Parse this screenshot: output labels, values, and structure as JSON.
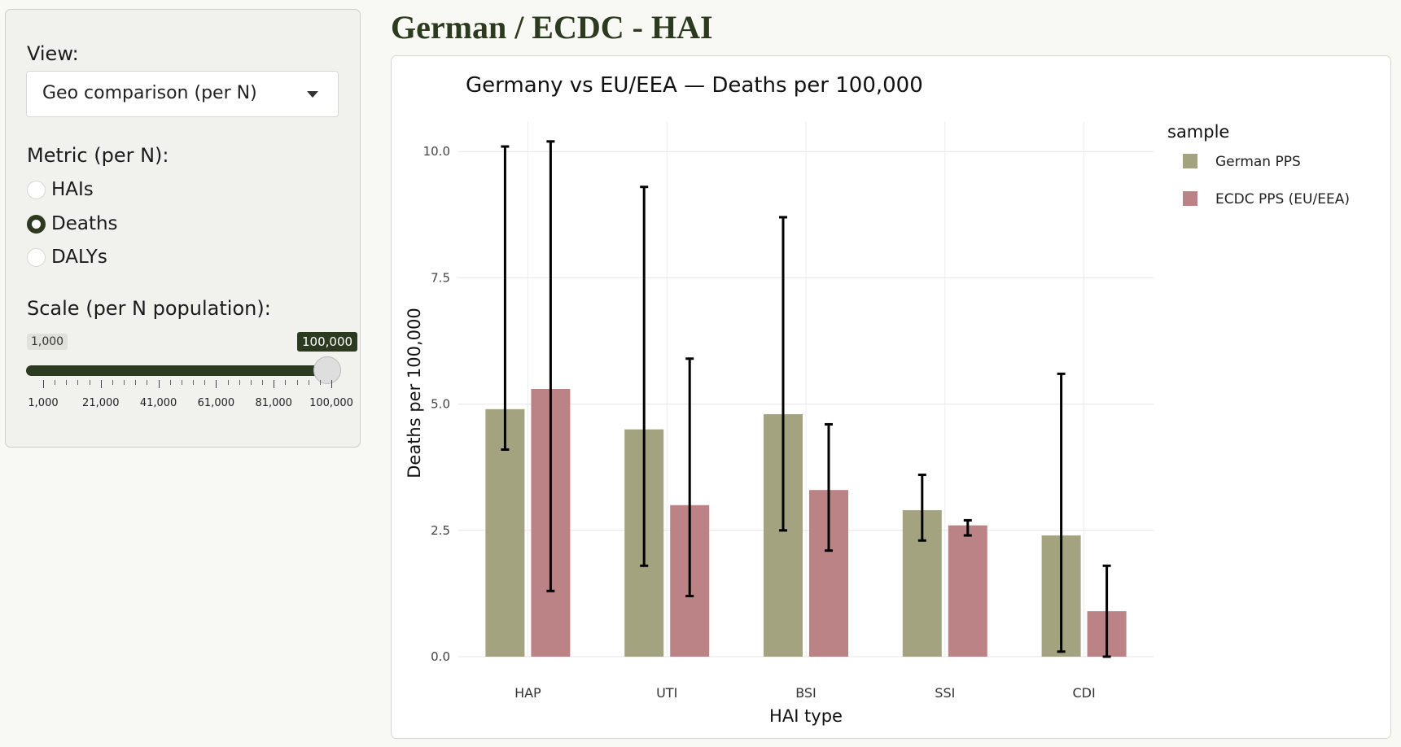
{
  "sidebar": {
    "view_label": "View:",
    "view_selected": "Geo comparison (per N)",
    "metric_label": "Metric (per N):",
    "metric_options": [
      {
        "label": "HAIs",
        "checked": false
      },
      {
        "label": "Deaths",
        "checked": true
      },
      {
        "label": "DALYs",
        "checked": false
      }
    ],
    "scale_label": "Scale (per N population):",
    "slider": {
      "min_label": "1,000",
      "value_label": "100,000",
      "min": 1000,
      "max": 100000,
      "value": 100000,
      "tick_labels": [
        "1,000",
        "21,000",
        "41,000",
        "61,000",
        "81,000",
        "100,000"
      ]
    }
  },
  "main": {
    "title": "German / ECDC - HAI"
  },
  "colors": {
    "accent": "#2c3a1f",
    "german": "#a3a37f",
    "ecdc": "#bc8387"
  },
  "chart_data": {
    "type": "bar",
    "title": "Germany vs EU/EEA — Deaths per 100,000",
    "xlabel": "HAI type",
    "ylabel": "Deaths per 100,000",
    "categories": [
      "HAP",
      "UTI",
      "BSI",
      "SSI",
      "CDI"
    ],
    "ylim": [
      0,
      10.6
    ],
    "yticks": [
      0,
      2.5,
      5,
      7.5,
      10
    ],
    "ytick_labels": [
      "0.0",
      "2.5",
      "5.0",
      "7.5",
      "10.0"
    ],
    "grid": true,
    "legend": {
      "title": "sample",
      "position": "right"
    },
    "series": [
      {
        "name": "German PPS",
        "values": [
          4.9,
          4.5,
          4.8,
          2.9,
          2.4
        ],
        "lower": [
          4.1,
          1.8,
          2.5,
          2.3,
          0.1
        ],
        "upper": [
          10.1,
          9.3,
          8.7,
          3.6,
          5.6
        ]
      },
      {
        "name": "ECDC PPS (EU/EEA)",
        "values": [
          5.3,
          3.0,
          3.3,
          2.6,
          0.9
        ],
        "lower": [
          1.3,
          1.2,
          2.1,
          2.4,
          0.0
        ],
        "upper": [
          10.2,
          5.9,
          4.6,
          2.7,
          1.8
        ]
      }
    ]
  }
}
